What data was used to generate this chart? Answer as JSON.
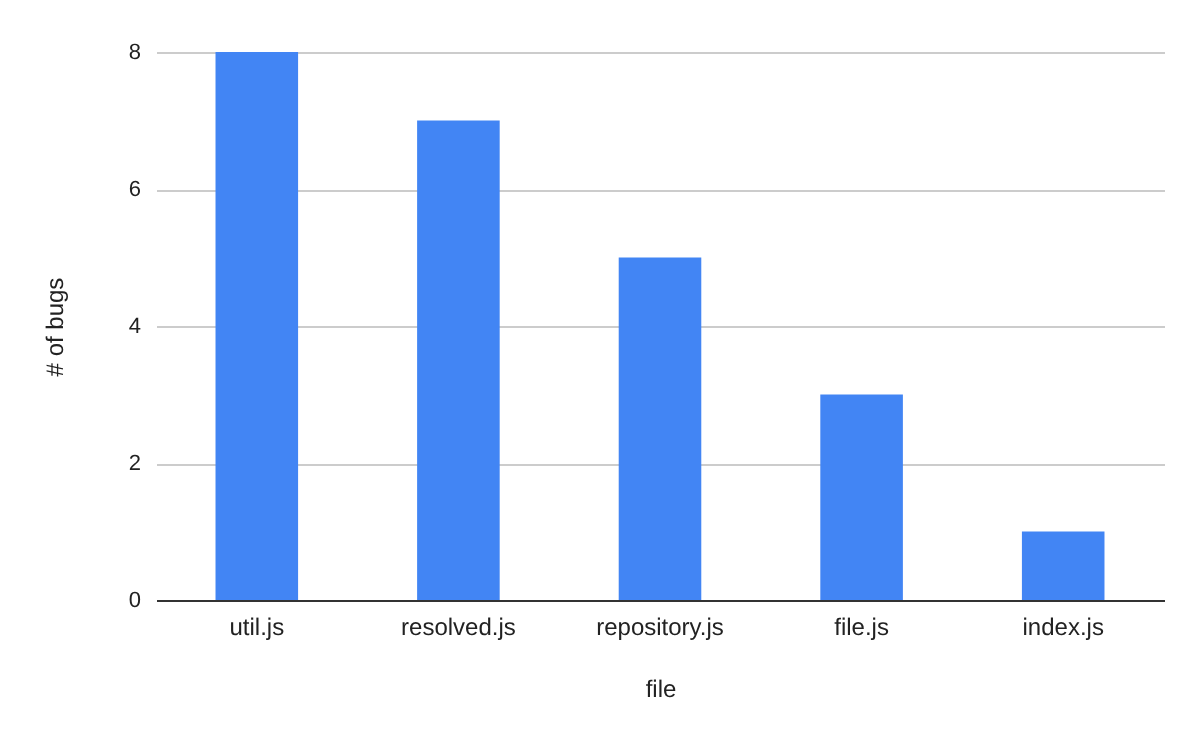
{
  "chart_data": {
    "type": "bar",
    "xlabel": "file",
    "ylabel": "# of bugs",
    "categories": [
      "util.js",
      "resolved.js",
      "repository.js",
      "file.js",
      "index.js"
    ],
    "values": [
      8,
      7,
      5,
      3,
      1
    ],
    "color": "#4285f4",
    "ylim": [
      0,
      8
    ],
    "yticks": [
      0,
      2,
      4,
      6,
      8
    ],
    "grid": "y"
  }
}
